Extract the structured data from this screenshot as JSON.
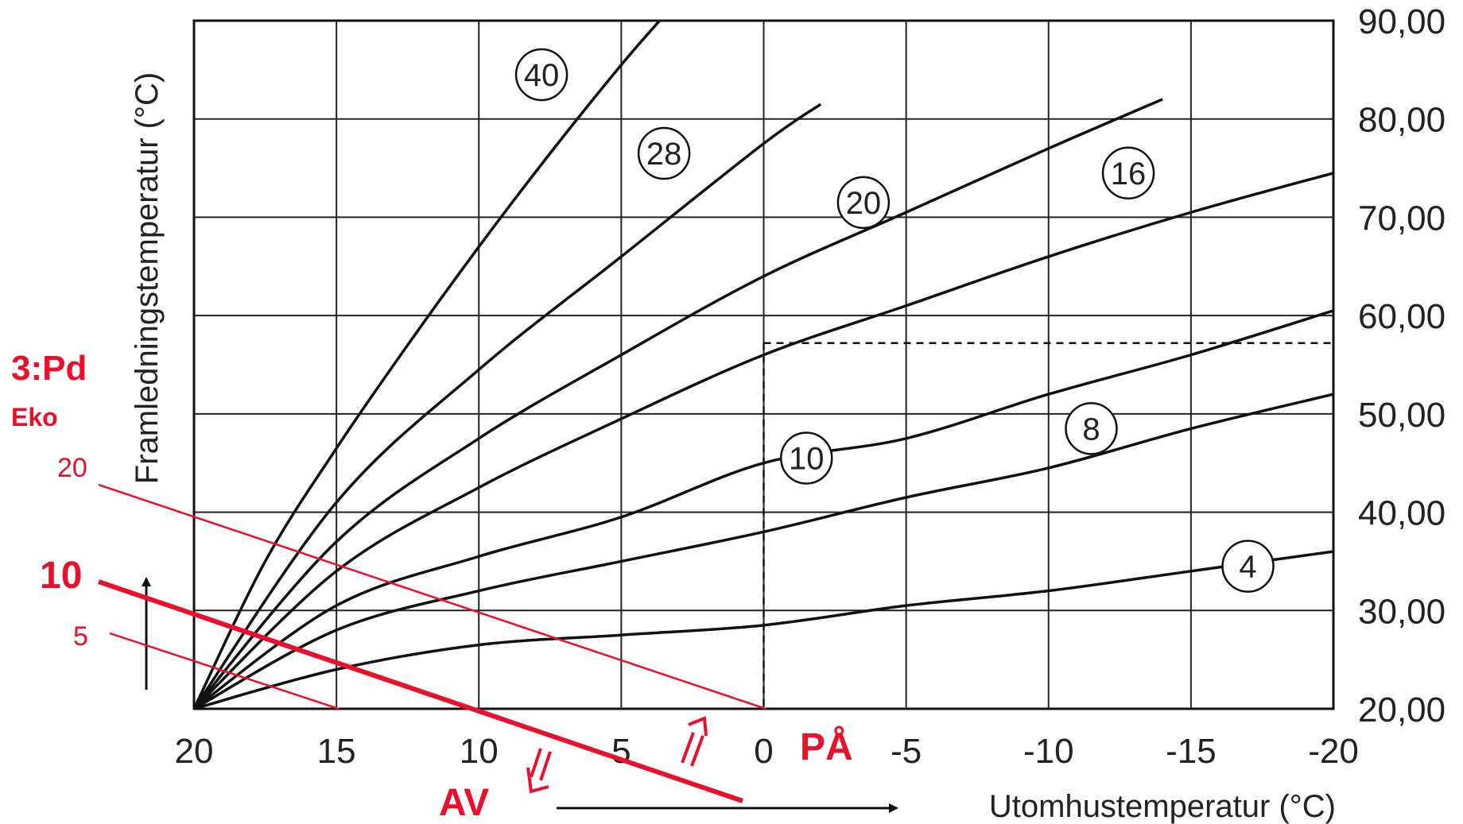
{
  "chart_data": {
    "type": "line",
    "xlabel": "Utomhustemperatur (°C)",
    "ylabel": "Framledningstemperatur (°C)",
    "xlim": [
      20,
      -20
    ],
    "ylim": [
      20,
      90
    ],
    "x_ticks": [
      "20",
      "15",
      "10",
      "5",
      "0",
      "-5",
      "-10",
      "-15",
      "-20"
    ],
    "y_ticks": [
      "20,00",
      "30,00",
      "40,00",
      "50,00",
      "60,00",
      "70,00",
      "80,00",
      "90,00"
    ],
    "grid": true,
    "series": [
      {
        "name": "40",
        "label_at": [
          7.8,
          84.5
        ],
        "points": [
          [
            20,
            20
          ],
          [
            17.5,
            35
          ],
          [
            15,
            46.5
          ],
          [
            12.5,
            57
          ],
          [
            10,
            67
          ],
          [
            7.5,
            76.5
          ],
          [
            5,
            85.5
          ],
          [
            3.5,
            90.5
          ]
        ]
      },
      {
        "name": "28",
        "label_at": [
          3.5,
          76.5
        ],
        "points": [
          [
            20,
            20
          ],
          [
            15,
            41
          ],
          [
            10,
            54.5
          ],
          [
            5,
            66
          ],
          [
            0,
            77.5
          ],
          [
            -2,
            81.5
          ]
        ]
      },
      {
        "name": "20",
        "label_at": [
          -3.5,
          71.5
        ],
        "points": [
          [
            20,
            20
          ],
          [
            15,
            37
          ],
          [
            10,
            47.5
          ],
          [
            5,
            56
          ],
          [
            0,
            64
          ],
          [
            -5,
            70.5
          ],
          [
            -10,
            77
          ],
          [
            -14,
            82
          ]
        ]
      },
      {
        "name": "16",
        "label_at": [
          -12.8,
          74.5
        ],
        "points": [
          [
            20,
            20
          ],
          [
            15,
            34
          ],
          [
            10,
            42.5
          ],
          [
            5,
            49.5
          ],
          [
            0,
            56
          ],
          [
            -5,
            61
          ],
          [
            -10,
            66
          ],
          [
            -15,
            70.5
          ],
          [
            -20,
            74.5
          ]
        ]
      },
      {
        "name": "10",
        "label_at": [
          -1.5,
          45.5
        ],
        "points": [
          [
            20,
            20
          ],
          [
            15,
            30.5
          ],
          [
            10,
            35.5
          ],
          [
            5,
            39.5
          ],
          [
            0,
            45
          ],
          [
            -5,
            47.5
          ],
          [
            -10,
            52
          ],
          [
            -15,
            56
          ],
          [
            -20,
            60.5
          ]
        ]
      },
      {
        "name": "8",
        "label_at": [
          -11.5,
          48.5
        ],
        "points": [
          [
            20,
            20
          ],
          [
            15,
            28
          ],
          [
            10,
            32
          ],
          [
            5,
            35
          ],
          [
            0,
            38
          ],
          [
            -5,
            41.5
          ],
          [
            -10,
            44.5
          ],
          [
            -15,
            48.5
          ],
          [
            -20,
            52
          ]
        ]
      },
      {
        "name": "4",
        "label_at": [
          -17,
          34.5
        ],
        "points": [
          [
            20,
            20
          ],
          [
            15,
            24
          ],
          [
            10,
            26.5
          ],
          [
            5,
            27.5
          ],
          [
            0,
            28.5
          ],
          [
            -5,
            30.5
          ],
          [
            -10,
            32
          ],
          [
            -15,
            34
          ],
          [
            -20,
            36
          ]
        ]
      }
    ],
    "reference_lines": {
      "horizontal_y": 57.2,
      "vertical_x": 0
    },
    "annotations": {
      "heading": "3:Pd",
      "subheading": "Eko",
      "level_high": "20",
      "level_mid": "10",
      "level_low": "5",
      "on_label": "PÅ",
      "off_label": "AV",
      "accent_color": "#e8102a"
    }
  }
}
